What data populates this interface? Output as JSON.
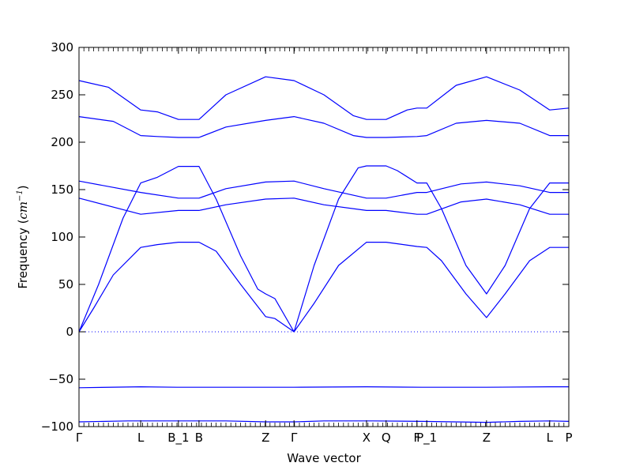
{
  "chart_data": {
    "type": "line",
    "title": "",
    "xlabel": "Wave vector",
    "ylabel": "Frequency (",
    "ylabel_math": "cm",
    "ylabel_exp": "−1",
    "ylabel_close": ")",
    "ylim": [
      -100,
      300
    ],
    "xlim": [
      0,
      1
    ],
    "yticks": [
      -100,
      -50,
      0,
      50,
      100,
      150,
      200,
      250,
      300
    ],
    "ytick_labels": [
      "−100",
      "−50",
      "0",
      "50",
      "100",
      "150",
      "200",
      "250",
      "300"
    ],
    "zero_line": {
      "y": 0,
      "style": "dotted",
      "color": "#0000ff"
    },
    "grid": false,
    "line_color": "#0000ff",
    "high_symmetry_points": [
      {
        "label": "Γ",
        "x": 0.0
      },
      {
        "label": "L",
        "x": 0.126
      },
      {
        "label": "B_1",
        "x": 0.203
      },
      {
        "label": "B",
        "x": 0.245
      },
      {
        "label": "Z",
        "x": 0.381
      },
      {
        "label": "Γ",
        "x": 0.439
      },
      {
        "label": "X",
        "x": 0.587
      },
      {
        "label": "Q",
        "x": 0.627
      },
      {
        "label": "F",
        "x": 0.69
      },
      {
        "label": "P_1",
        "x": 0.71
      },
      {
        "label": "Z",
        "x": 0.832
      },
      {
        "label": "L",
        "x": 0.961
      },
      {
        "label": "P",
        "x": 1.0
      }
    ],
    "series": [
      {
        "values": [
          [
            0.0,
            -95
          ],
          [
            0.1,
            -94
          ],
          [
            0.2,
            -94
          ],
          [
            0.3,
            -94
          ],
          [
            0.381,
            -95
          ],
          [
            0.439,
            -95
          ],
          [
            0.5,
            -94
          ],
          [
            0.6,
            -94
          ],
          [
            0.7,
            -94.5
          ],
          [
            0.832,
            -95.5
          ],
          [
            0.9,
            -94.5
          ],
          [
            0.961,
            -94
          ],
          [
            1.0,
            -94.5
          ]
        ]
      },
      {
        "values": [
          [
            0.0,
            -59
          ],
          [
            0.126,
            -58
          ],
          [
            0.2,
            -58.5
          ],
          [
            0.3,
            -58.5
          ],
          [
            0.439,
            -58.5
          ],
          [
            0.587,
            -58
          ],
          [
            0.7,
            -58.5
          ],
          [
            0.832,
            -58.5
          ],
          [
            0.961,
            -58
          ],
          [
            1.0,
            -58
          ]
        ]
      },
      {
        "values": [
          [
            0.0,
            0
          ],
          [
            0.03,
            25
          ],
          [
            0.07,
            60
          ],
          [
            0.126,
            89
          ],
          [
            0.16,
            92
          ],
          [
            0.203,
            94.5
          ],
          [
            0.245,
            94.5
          ],
          [
            0.28,
            85
          ],
          [
            0.33,
            50
          ],
          [
            0.381,
            16
          ],
          [
            0.4,
            14
          ],
          [
            0.439,
            0
          ],
          [
            0.48,
            30
          ],
          [
            0.53,
            70
          ],
          [
            0.587,
            94.5
          ],
          [
            0.627,
            94.5
          ],
          [
            0.69,
            90
          ],
          [
            0.71,
            89
          ],
          [
            0.74,
            75
          ],
          [
            0.79,
            40
          ],
          [
            0.832,
            15
          ],
          [
            0.87,
            40
          ],
          [
            0.92,
            75
          ],
          [
            0.961,
            89
          ],
          [
            1.0,
            89
          ]
        ]
      },
      {
        "values": [
          [
            0.0,
            0
          ],
          [
            0.04,
            50
          ],
          [
            0.09,
            120
          ],
          [
            0.126,
            157
          ],
          [
            0.16,
            163
          ],
          [
            0.203,
            174.5
          ],
          [
            0.245,
            174.5
          ],
          [
            0.28,
            140
          ],
          [
            0.33,
            80
          ],
          [
            0.365,
            45
          ],
          [
            0.381,
            40
          ],
          [
            0.4,
            35
          ],
          [
            0.439,
            0
          ],
          [
            0.48,
            70
          ],
          [
            0.53,
            140
          ],
          [
            0.57,
            173
          ],
          [
            0.587,
            175
          ],
          [
            0.627,
            175
          ],
          [
            0.65,
            170
          ],
          [
            0.69,
            157
          ],
          [
            0.71,
            157
          ],
          [
            0.74,
            130
          ],
          [
            0.79,
            70
          ],
          [
            0.832,
            40
          ],
          [
            0.87,
            70
          ],
          [
            0.92,
            130
          ],
          [
            0.961,
            157
          ],
          [
            1.0,
            157
          ]
        ]
      },
      {
        "values": [
          [
            0.0,
            141
          ],
          [
            0.126,
            124
          ],
          [
            0.203,
            128
          ],
          [
            0.245,
            128
          ],
          [
            0.3,
            134
          ],
          [
            0.381,
            140
          ],
          [
            0.439,
            141
          ],
          [
            0.5,
            134
          ],
          [
            0.587,
            128
          ],
          [
            0.627,
            128
          ],
          [
            0.69,
            124
          ],
          [
            0.71,
            124
          ],
          [
            0.78,
            137
          ],
          [
            0.832,
            140
          ],
          [
            0.9,
            134
          ],
          [
            0.961,
            124
          ],
          [
            1.0,
            124
          ]
        ]
      },
      {
        "values": [
          [
            0.0,
            159
          ],
          [
            0.126,
            147
          ],
          [
            0.203,
            141
          ],
          [
            0.245,
            141
          ],
          [
            0.3,
            151
          ],
          [
            0.381,
            158
          ],
          [
            0.439,
            159
          ],
          [
            0.5,
            151
          ],
          [
            0.587,
            141
          ],
          [
            0.627,
            141
          ],
          [
            0.69,
            147
          ],
          [
            0.71,
            147
          ],
          [
            0.78,
            156
          ],
          [
            0.832,
            158
          ],
          [
            0.9,
            154
          ],
          [
            0.961,
            147
          ],
          [
            1.0,
            147
          ]
        ]
      },
      {
        "values": [
          [
            0.0,
            227
          ],
          [
            0.07,
            222
          ],
          [
            0.126,
            207
          ],
          [
            0.16,
            206
          ],
          [
            0.203,
            205
          ],
          [
            0.245,
            205
          ],
          [
            0.3,
            216
          ],
          [
            0.381,
            223
          ],
          [
            0.439,
            227
          ],
          [
            0.5,
            220
          ],
          [
            0.56,
            207
          ],
          [
            0.587,
            205
          ],
          [
            0.627,
            205
          ],
          [
            0.69,
            206
          ],
          [
            0.71,
            207
          ],
          [
            0.77,
            220
          ],
          [
            0.832,
            223
          ],
          [
            0.9,
            220
          ],
          [
            0.961,
            207
          ],
          [
            1.0,
            207
          ]
        ]
      },
      {
        "values": [
          [
            0.0,
            265
          ],
          [
            0.06,
            258
          ],
          [
            0.126,
            234
          ],
          [
            0.16,
            232
          ],
          [
            0.203,
            224
          ],
          [
            0.245,
            224
          ],
          [
            0.3,
            250
          ],
          [
            0.381,
            269
          ],
          [
            0.439,
            265
          ],
          [
            0.5,
            250
          ],
          [
            0.56,
            228
          ],
          [
            0.587,
            224
          ],
          [
            0.627,
            224
          ],
          [
            0.67,
            234
          ],
          [
            0.69,
            236
          ],
          [
            0.71,
            236
          ],
          [
            0.77,
            260
          ],
          [
            0.832,
            269
          ],
          [
            0.9,
            255
          ],
          [
            0.961,
            234
          ],
          [
            1.0,
            236
          ]
        ]
      }
    ]
  }
}
